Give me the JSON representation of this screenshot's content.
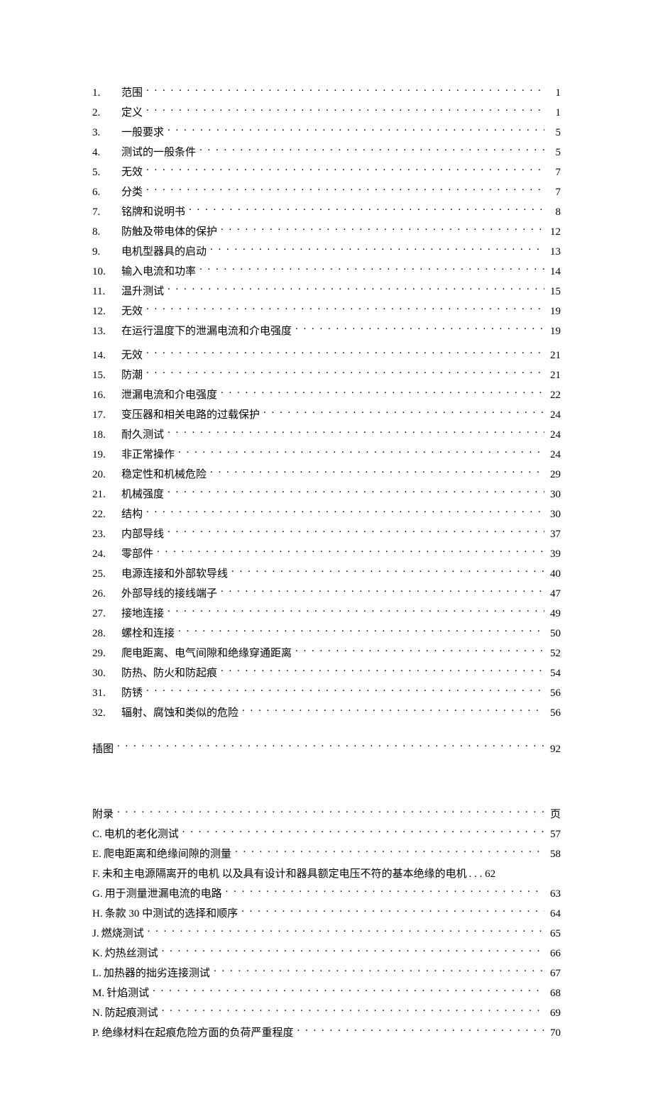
{
  "colors": {
    "background": "#ffffff",
    "text": "#000000"
  },
  "typography": {
    "font_family": "SimSun",
    "font_size_pt": 11
  },
  "main_toc": [
    {
      "num": "1.",
      "title": "范围",
      "page": "1"
    },
    {
      "num": "2.",
      "title": "定义",
      "page": "1"
    },
    {
      "num": "3.",
      "title": "一般要求",
      "page": "5"
    },
    {
      "num": "4.",
      "title": "测试的一般条件",
      "page": "5"
    },
    {
      "num": "5.",
      "title": "无效",
      "page": "7"
    },
    {
      "num": "6.",
      "title": "分类",
      "page": "7"
    },
    {
      "num": "7.",
      "title": "铭牌和说明书",
      "page": "8"
    },
    {
      "num": "8.",
      "title": "防触及带电体的保护",
      "page": "12"
    },
    {
      "num": "9.",
      "title": "电机型器具的启动",
      "page": "13"
    },
    {
      "num": "10.",
      "title": "输入电流和功率",
      "page": "14"
    },
    {
      "num": "11.",
      "title": "温升测试",
      "page": "15"
    },
    {
      "num": "12.",
      "title": "无效",
      "page": "19"
    },
    {
      "num": "13.",
      "title": "在运行温度下的泄漏电流和介电强度",
      "page": "19"
    },
    {
      "num": "14.",
      "title": "无效",
      "page": "21"
    },
    {
      "num": "15.",
      "title": "防潮",
      "page": "21"
    },
    {
      "num": "16.",
      "title": "泄漏电流和介电强度",
      "page": "22"
    },
    {
      "num": "17.",
      "title": "变压器和相关电路的过载保护",
      "page": "24"
    },
    {
      "num": "18.",
      "title": "耐久测试",
      "page": "24"
    },
    {
      "num": "19.",
      "title": "非正常操作",
      "page": "24"
    },
    {
      "num": "20.",
      "title": "稳定性和机械危险",
      "page": "29"
    },
    {
      "num": "21.",
      "title": "机械强度",
      "page": "30"
    },
    {
      "num": "22.",
      "title": "结构",
      "page": "30"
    },
    {
      "num": "23.",
      "title": "内部导线",
      "page": "37"
    },
    {
      "num": "24.",
      "title": "零部件",
      "page": "39"
    },
    {
      "num": "25.",
      "title": "电源连接和外部软导线",
      "page": "40"
    },
    {
      "num": "26.",
      "title": "外部导线的接线端子",
      "page": "47"
    },
    {
      "num": "27.",
      "title": "接地连接",
      "page": "49"
    },
    {
      "num": "28.",
      "title": "螺栓和连接",
      "page": "50"
    },
    {
      "num": "29.",
      "title": "爬电距离、电气间隙和绝缘穿通距离",
      "page": "52"
    },
    {
      "num": "30.",
      "title": "防热、防火和防起痕",
      "page": "54"
    },
    {
      "num": "31.",
      "title": "防锈",
      "page": "56"
    },
    {
      "num": "32.",
      "title": "辐射、腐蚀和类似的危险",
      "page": "56"
    }
  ],
  "illustration": {
    "title": "插图",
    "page": "92"
  },
  "appendix_header": {
    "title": "附录",
    "page": "页"
  },
  "appendix_toc": [
    {
      "prefix": "C.",
      "title": "电机的老化测试",
      "page": "57"
    },
    {
      "prefix": "E.",
      "title": "爬电距离和绝缘间隙的测量",
      "page": "58"
    },
    {
      "prefix": "F.",
      "title": "未和主电源隔离开的电机 以及具有设计和器具额定电压不符的基本绝缘的电机",
      "suffix": "62"
    },
    {
      "prefix": "G.",
      "title": "用于测量泄漏电流的电路",
      "page": "63"
    },
    {
      "prefix": "H.",
      "title": "条款 30 中测试的选择和顺序",
      "page": "64"
    },
    {
      "prefix": "J.",
      "title": "燃烧测试",
      "page": "65"
    },
    {
      "prefix": "K.",
      "title": "灼热丝测试",
      "page": "66"
    },
    {
      "prefix": "L.",
      "title": "加热器的拙劣连接测试",
      "page": "67"
    },
    {
      "prefix": "M.",
      "title": "针焰测试",
      "page": "68"
    },
    {
      "prefix": "N.",
      "title": "防起痕测试",
      "page": "69"
    },
    {
      "prefix": "P.",
      "title": "绝缘材料在起痕危险方面的负荷严重程度",
      "page": "70",
      "no_space": true
    }
  ]
}
